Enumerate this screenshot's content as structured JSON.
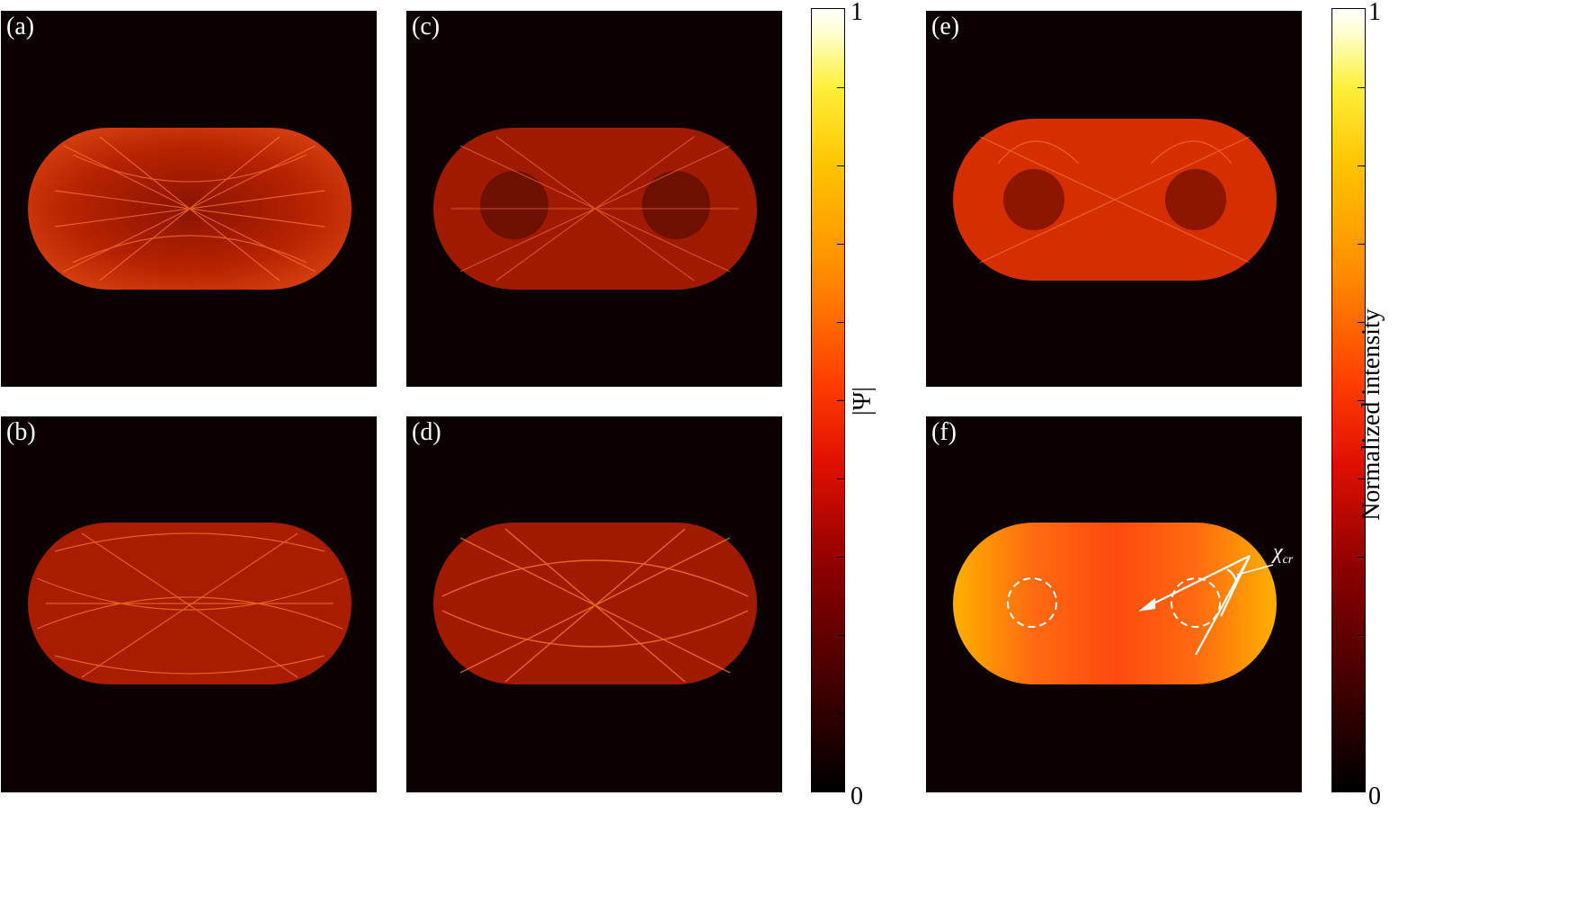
{
  "panels": [
    {
      "id": "a",
      "label": "(a)"
    },
    {
      "id": "b",
      "label": "(b)"
    },
    {
      "id": "c",
      "label": "(c)"
    },
    {
      "id": "d",
      "label": "(d)"
    },
    {
      "id": "e",
      "label": "(e)"
    },
    {
      "id": "f",
      "label": "(f)"
    }
  ],
  "colorbar_left": {
    "label": "|Ψ|",
    "min": "0",
    "max": "1"
  },
  "colorbar_right": {
    "label": "Normalized intensity",
    "min": "0",
    "max": "1"
  },
  "annotation": {
    "angle_label": "χ",
    "angle_subscript": "cr"
  },
  "colors": {
    "background": "#0b0100",
    "stadium_dim": "#b82000",
    "stadium_bright": "#ff5a10",
    "marker": "#ffffff"
  }
}
